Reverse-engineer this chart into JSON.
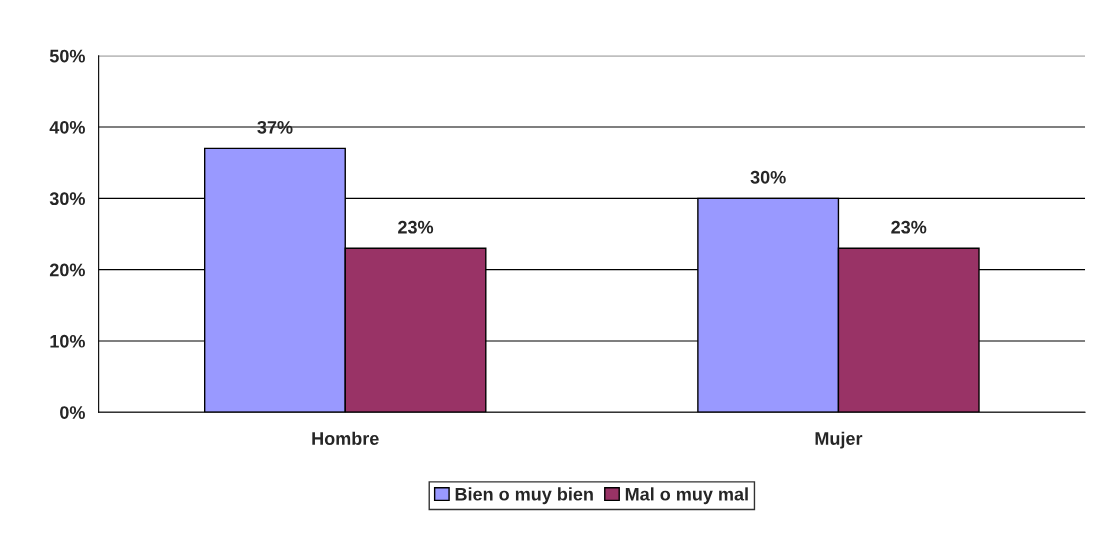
{
  "chart_data": {
    "type": "bar",
    "categories": [
      "Hombre",
      "Mujer"
    ],
    "series": [
      {
        "name": "Bien o muy bien",
        "color": "#9999ff",
        "values": [
          37,
          30
        ],
        "value_labels": [
          "37%",
          "30%"
        ]
      },
      {
        "name": "Mal o muy mal",
        "color": "#993366",
        "values": [
          23,
          23
        ],
        "value_labels": [
          "23%",
          "23%"
        ]
      }
    ],
    "ylim": [
      0,
      50
    ],
    "yticks": [
      {
        "value": 0,
        "label": "0%"
      },
      {
        "value": 10,
        "label": "10%"
      },
      {
        "value": 20,
        "label": "20%"
      },
      {
        "value": 30,
        "label": "30%"
      },
      {
        "value": 40,
        "label": "40%"
      },
      {
        "value": 50,
        "label": "50%"
      }
    ],
    "grid": "y",
    "legend": "bottom"
  }
}
